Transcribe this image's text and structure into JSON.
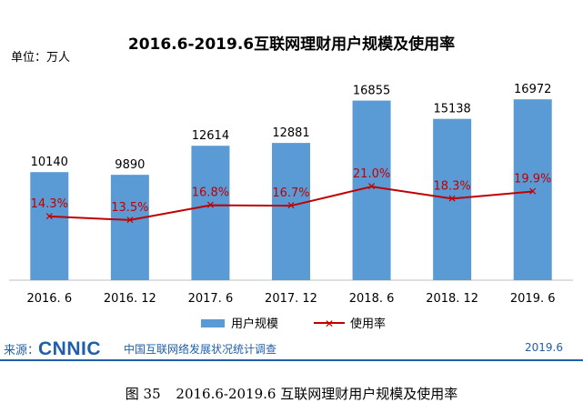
{
  "chart_data": {
    "type": "bar",
    "title": "2016.6-2019.6互联网理财用户规模及使用率",
    "unit": "单位：万人",
    "categories": [
      "2016. 6",
      "2016. 12",
      "2017. 6",
      "2017. 12",
      "2018. 6",
      "2018. 12",
      "2019. 6"
    ],
    "series": [
      {
        "name": "用户规模",
        "type": "bar",
        "color": "#5b9bd5",
        "values": [
          10140,
          9890,
          12614,
          12881,
          16855,
          15138,
          16972
        ],
        "labels": [
          "10140",
          "9890",
          "12614",
          "12881",
          "16855",
          "15138",
          "16972"
        ]
      },
      {
        "name": "使用率",
        "type": "line",
        "color": "#c00000",
        "values": [
          14.3,
          13.5,
          16.8,
          16.7,
          21.0,
          18.3,
          19.9
        ],
        "labels": [
          "14.3%",
          "13.5%",
          "16.8%",
          "16.7%",
          "21.0%",
          "18.3%",
          "19.9%"
        ]
      }
    ],
    "legend_position": "bottom",
    "grid": false
  },
  "source": {
    "label": "来源：",
    "logo": "CNNIC",
    "name": "中国互联网络发展状况统计调查",
    "date": "2019.6"
  },
  "caption": {
    "figure_no": "图 35",
    "text": "2016.6-2019.6 互联网理财用户规模及使用率"
  }
}
